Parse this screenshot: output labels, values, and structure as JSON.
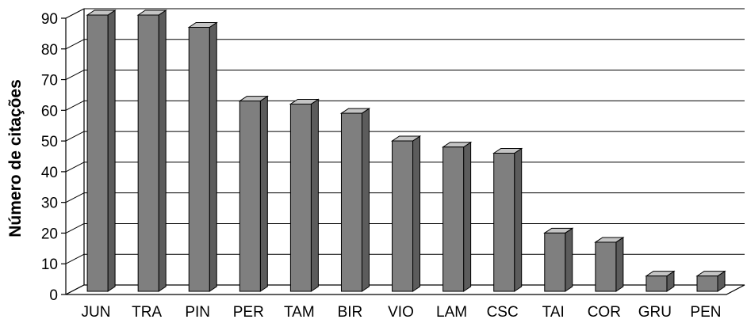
{
  "chart_data": {
    "type": "bar",
    "style": "3d",
    "categories": [
      "JUN",
      "TRA",
      "PIN",
      "PER",
      "TAM",
      "BIR",
      "VIO",
      "LAM",
      "CSC",
      "TAI",
      "COR",
      "GRU",
      "PEN"
    ],
    "values": [
      90,
      90,
      86,
      62,
      61,
      58,
      49,
      47,
      45,
      19,
      16,
      5,
      5
    ],
    "ylabel": "Número de citações",
    "xlabel": "",
    "ylim": [
      0,
      90
    ],
    "yticks": [
      0,
      10,
      20,
      30,
      40,
      50,
      60,
      70,
      80,
      90
    ],
    "grid": true,
    "legend": "none",
    "colors": {
      "bar_front": "#7f7f7f",
      "bar_top": "#c4c4c4",
      "bar_side": "#5c5c5c",
      "grid": "#000000"
    }
  }
}
